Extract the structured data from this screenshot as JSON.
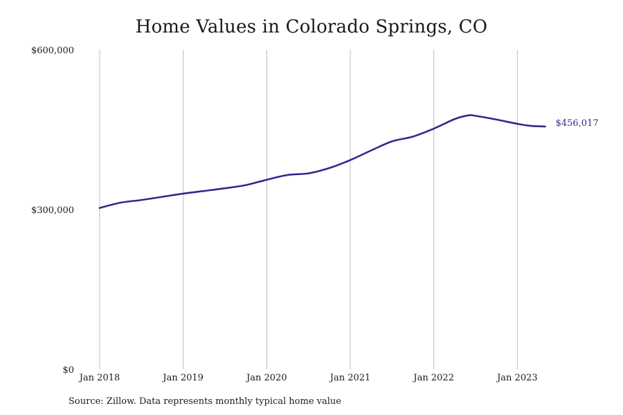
{
  "chart_data": {
    "type": "line",
    "title": "Home Values in Colorado Springs, CO",
    "xlabel": "",
    "ylabel": "",
    "ylim": [
      0,
      600000
    ],
    "xlim": [
      "2018-01",
      "2023-12"
    ],
    "y_ticks": [
      {
        "value": 0,
        "label": "$0"
      },
      {
        "value": 300000,
        "label": "$300,000"
      },
      {
        "value": 600000,
        "label": "$600,000"
      }
    ],
    "x_ticks": [
      {
        "value": "2018-01",
        "label": "Jan 2018"
      },
      {
        "value": "2019-01",
        "label": "Jan 2019"
      },
      {
        "value": "2020-01",
        "label": "Jan 2020"
      },
      {
        "value": "2021-01",
        "label": "Jan 2021"
      },
      {
        "value": "2022-01",
        "label": "Jan 2022"
      },
      {
        "value": "2023-01",
        "label": "Jan 2023"
      }
    ],
    "grid": {
      "vertical": true,
      "horizontal": false
    },
    "legend": "none",
    "series": [
      {
        "color": "#2e2a8a",
        "end_label": "$456,017",
        "points": [
          {
            "x": "2018-01",
            "y": 303000
          },
          {
            "x": "2018-04",
            "y": 313000
          },
          {
            "x": "2018-07",
            "y": 318000
          },
          {
            "x": "2018-10",
            "y": 324000
          },
          {
            "x": "2019-01",
            "y": 330000
          },
          {
            "x": "2019-04",
            "y": 335000
          },
          {
            "x": "2019-07",
            "y": 340000
          },
          {
            "x": "2019-10",
            "y": 346000
          },
          {
            "x": "2020-01",
            "y": 356000
          },
          {
            "x": "2020-04",
            "y": 365000
          },
          {
            "x": "2020-07",
            "y": 368000
          },
          {
            "x": "2020-10",
            "y": 378000
          },
          {
            "x": "2021-01",
            "y": 393000
          },
          {
            "x": "2021-04",
            "y": 411000
          },
          {
            "x": "2021-07",
            "y": 428000
          },
          {
            "x": "2021-10",
            "y": 437000
          },
          {
            "x": "2022-01",
            "y": 452000
          },
          {
            "x": "2022-04",
            "y": 470000
          },
          {
            "x": "2022-06",
            "y": 477000
          },
          {
            "x": "2022-07",
            "y": 476000
          },
          {
            "x": "2022-10",
            "y": 469000
          },
          {
            "x": "2023-01",
            "y": 461000
          },
          {
            "x": "2023-03",
            "y": 457000
          },
          {
            "x": "2023-05",
            "y": 456017
          }
        ]
      }
    ]
  },
  "footer": {
    "source": "Source: Zillow. Data represents monthly typical home value"
  },
  "colors": {
    "line": "#2e2a8a",
    "grid": "#bdbdbd",
    "text": "#1a1a1a"
  }
}
